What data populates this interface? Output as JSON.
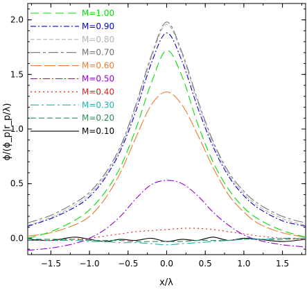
{
  "chart_data": {
    "type": "line",
    "xlabel": "x/λ",
    "ylabel": "ϕ/(ϕ_p|r_p/λ)",
    "xlim": [
      -1.8,
      1.8
    ],
    "ylim": [
      -0.15,
      2.15
    ],
    "x_ticks": [
      -1.5,
      -1.0,
      -0.5,
      0.0,
      0.5,
      1.0,
      1.5
    ],
    "x_tick_labels": [
      "−1.5",
      "−1.0",
      "−0.5",
      "0.0",
      "0.5",
      "1.0",
      "1.5"
    ],
    "y_ticks": [
      0.0,
      0.5,
      1.0,
      1.5,
      2.0
    ],
    "y_tick_labels": [
      "0.0",
      "0.5",
      "1.0",
      "1.5",
      "2.0"
    ],
    "legend_position": "top-left",
    "grid": false,
    "x": [
      -1.8,
      -1.5,
      -1.2,
      -1.0,
      -0.8,
      -0.6,
      -0.4,
      -0.2,
      0.0,
      0.2,
      0.4,
      0.6,
      0.8,
      1.0,
      1.2,
      1.5,
      1.8
    ],
    "series": [
      {
        "name": "M=1.00",
        "color": "#00dd00",
        "dash": "12,6",
        "values": [
          0.0,
          0.06,
          0.16,
          0.26,
          0.42,
          0.65,
          1.0,
          1.42,
          1.72,
          1.48,
          1.05,
          0.7,
          0.45,
          0.28,
          0.17,
          0.07,
          0.01
        ]
      },
      {
        "name": "M=0.90",
        "color": "#0000cc",
        "dash": "8,3,2,3",
        "values": [
          0.11,
          0.18,
          0.28,
          0.38,
          0.55,
          0.8,
          1.16,
          1.6,
          1.88,
          1.62,
          1.2,
          0.84,
          0.57,
          0.39,
          0.27,
          0.16,
          0.11
        ]
      },
      {
        "name": "M=0.80",
        "color": "#b4b4b4",
        "dash": "6,3",
        "values": [
          0.12,
          0.19,
          0.3,
          0.4,
          0.57,
          0.82,
          1.2,
          1.65,
          1.96,
          1.68,
          1.25,
          0.87,
          0.59,
          0.41,
          0.29,
          0.18,
          0.12
        ]
      },
      {
        "name": "M=0.70",
        "color": "#707070",
        "dash": "14,4,4,4",
        "values": [
          0.14,
          0.21,
          0.32,
          0.42,
          0.59,
          0.84,
          1.22,
          1.67,
          1.98,
          1.7,
          1.27,
          0.89,
          0.61,
          0.43,
          0.31,
          0.2,
          0.14
        ]
      },
      {
        "name": "M=0.60",
        "color": "#e87b2c",
        "dash": "16,4",
        "values": [
          0.02,
          0.05,
          0.12,
          0.2,
          0.36,
          0.6,
          0.92,
          1.22,
          1.34,
          1.22,
          0.95,
          0.65,
          0.4,
          0.24,
          0.13,
          0.05,
          0.01
        ]
      },
      {
        "name": "M=0.50",
        "color": "#9400d3",
        "dash": "10,3,2,3",
        "values": [
          -0.11,
          -0.09,
          -0.05,
          0.0,
          0.08,
          0.2,
          0.36,
          0.49,
          0.53,
          0.5,
          0.39,
          0.24,
          0.12,
          0.03,
          -0.02,
          -0.06,
          -0.08
        ]
      },
      {
        "name": "M=0.40",
        "color": "#d42020",
        "dash": "2,4",
        "values": [
          -0.02,
          -0.02,
          -0.01,
          0.0,
          0.02,
          0.04,
          0.06,
          0.07,
          0.08,
          0.09,
          0.09,
          0.08,
          0.06,
          0.04,
          0.02,
          0.0,
          -0.01
        ]
      },
      {
        "name": "M=0.30",
        "color": "#20b2aa",
        "dash": "12,4,3,4",
        "values": [
          -0.02,
          -0.02,
          -0.02,
          -0.03,
          -0.03,
          -0.04,
          -0.04,
          -0.05,
          -0.06,
          -0.05,
          -0.04,
          -0.03,
          -0.02,
          -0.01,
          -0.01,
          0.0,
          0.0
        ]
      },
      {
        "name": "M=0.20",
        "color": "#2e8b57",
        "dash": "8,4",
        "values": [
          -0.01,
          -0.01,
          -0.01,
          -0.02,
          -0.02,
          -0.02,
          -0.03,
          -0.03,
          -0.03,
          -0.03,
          -0.02,
          -0.02,
          -0.02,
          -0.01,
          -0.01,
          -0.01,
          0.0
        ]
      },
      {
        "name": "M=0.10",
        "color": "#000000",
        "dash": "",
        "values": [
          -0.01,
          -0.02,
          0.01,
          -0.01,
          -0.03,
          -0.01,
          -0.02,
          0.0,
          -0.03,
          -0.01,
          -0.02,
          0.01,
          -0.02,
          0.0,
          -0.01,
          -0.03,
          -0.01
        ]
      }
    ]
  }
}
